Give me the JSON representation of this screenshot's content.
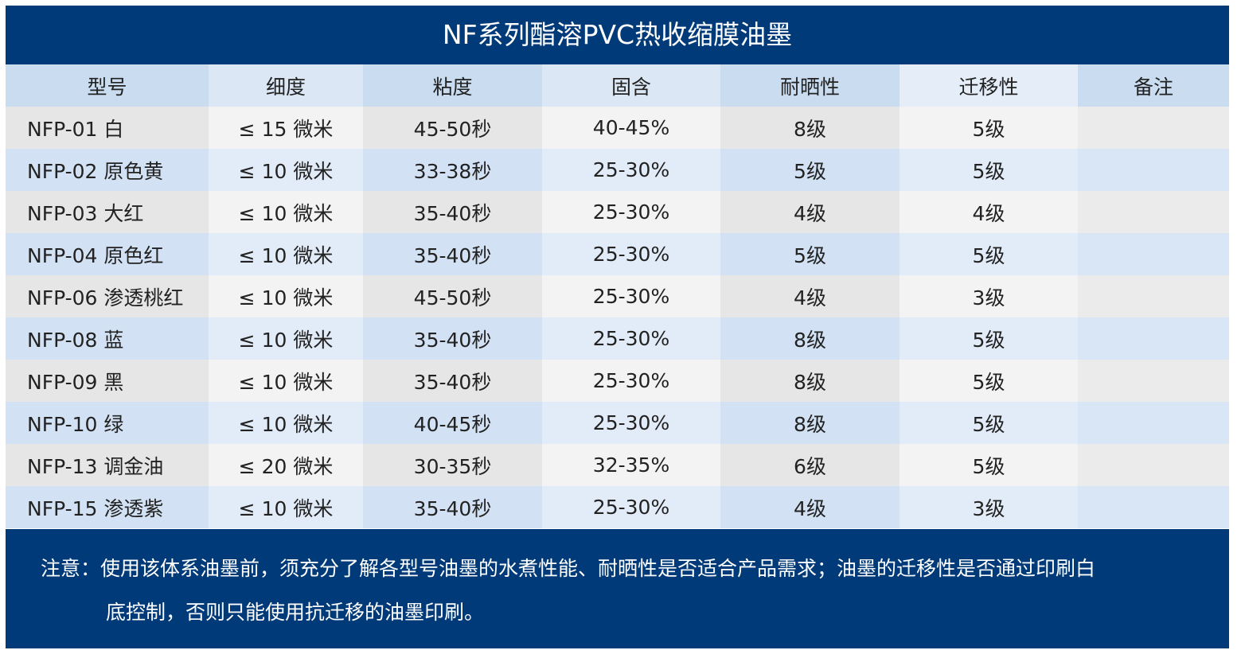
{
  "title": "NF系列酯溶PVC热收缩膜油墨",
  "table": {
    "headers": [
      "型号",
      "细度",
      "粘度",
      "固含",
      "耐晒性",
      "迁移性",
      "备注"
    ],
    "rows": [
      [
        "NFP-01 白",
        "≤ 15 微米",
        "45-50秒",
        "40-45%",
        "8级",
        "5级",
        ""
      ],
      [
        "NFP-02 原色黄",
        "≤ 10 微米",
        "33-38秒",
        "25-30%",
        "5级",
        "5级",
        ""
      ],
      [
        "NFP-03 大红",
        "≤ 10 微米",
        "35-40秒",
        "25-30%",
        "4级",
        "4级",
        ""
      ],
      [
        "NFP-04 原色红",
        "≤ 10 微米",
        "35-40秒",
        "25-30%",
        "5级",
        "5级",
        ""
      ],
      [
        "NFP-06 渗透桃红",
        "≤ 10 微米",
        "45-50秒",
        "25-30%",
        "4级",
        "3级",
        ""
      ],
      [
        "NFP-08 蓝",
        "≤ 10 微米",
        "35-40秒",
        "25-30%",
        "8级",
        "5级",
        ""
      ],
      [
        "NFP-09 黑",
        "≤ 10 微米",
        "35-40秒",
        "25-30%",
        "8级",
        "5级",
        ""
      ],
      [
        "NFP-10  绿",
        "≤ 10 微米",
        "40-45秒",
        "25-30%",
        "8级",
        "5级",
        ""
      ],
      [
        "NFP-13  调金油",
        "≤ 20 微米",
        "30-35秒",
        "32-35%",
        "6级",
        "5级",
        ""
      ],
      [
        "NFP-15  渗透紫",
        "≤ 10 微米",
        "35-40秒",
        "25-30%",
        "4级",
        "3级",
        ""
      ]
    ]
  },
  "note": {
    "line1": "注意：使用该体系油墨前，须充分了解各型号油墨的水煮性能、耐晒性是否适合产品需求；油墨的迁移性是否通过印刷白",
    "line2": "底控制，否则只能使用抗迁移的油墨印刷。"
  },
  "colors": {
    "banner": "#003a78",
    "header_blue": "#c9dcf0",
    "row_gray": "#e6e6e6",
    "row_blue": "#d2e2f4"
  }
}
